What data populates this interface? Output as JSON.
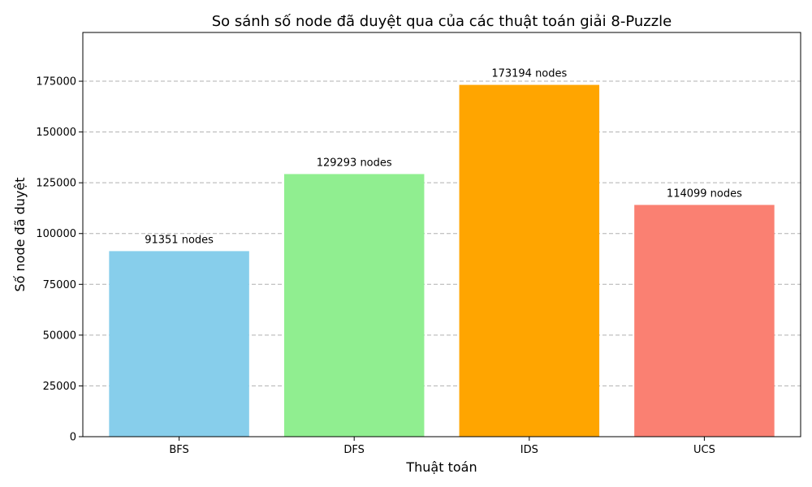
{
  "chart_data": {
    "type": "bar",
    "title": "So sánh số node đã duyệt qua của các thuật toán giải 8-Puzzle",
    "xlabel": "Thuật toán",
    "ylabel": "Số node đã duyệt",
    "categories": [
      "BFS",
      "DFS",
      "IDS",
      "UCS"
    ],
    "values": [
      91351,
      129293,
      173194,
      114099
    ],
    "value_labels": [
      "91351 nodes",
      "129293 nodes",
      "173194 nodes",
      "114099 nodes"
    ],
    "colors": [
      "#87ceeb",
      "#90ee90",
      "#ffa500",
      "#fa8072"
    ],
    "ylim": [
      0,
      199000
    ],
    "yticks": [
      0,
      25000,
      50000,
      75000,
      100000,
      125000,
      150000,
      175000
    ],
    "ytick_labels": [
      "0",
      "25000",
      "50000",
      "75000",
      "100000",
      "125000",
      "150000",
      "175000"
    ],
    "grid": "y-dashed",
    "legend": "none"
  }
}
